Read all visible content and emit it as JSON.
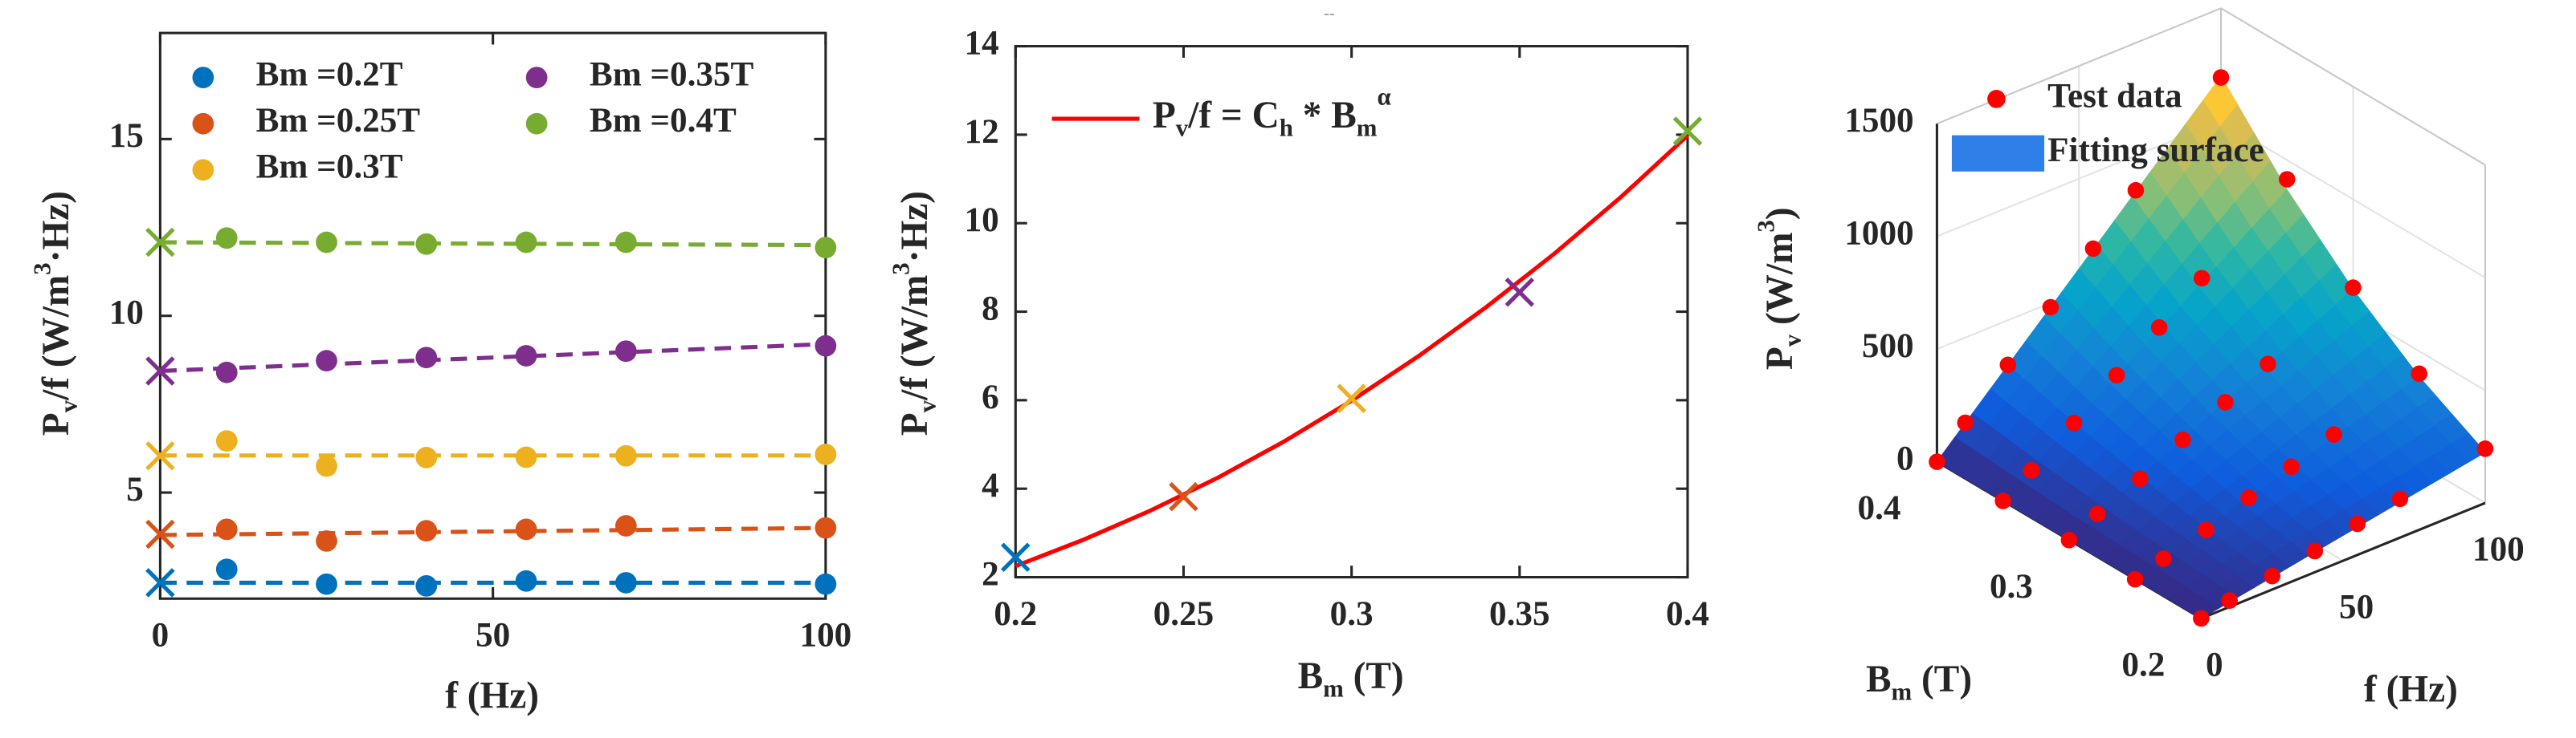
{
  "chart_data": [
    {
      "type": "scatter",
      "xlabel": "f (Hz)",
      "ylabel": [
        "P",
        "v",
        "/f (W/m",
        "3",
        "·Hz)"
      ],
      "x": [
        10,
        25,
        40,
        55,
        70,
        100
      ],
      "fit_x": [
        0,
        100
      ],
      "xlim": [
        0,
        100
      ],
      "xticks": [
        0,
        50,
        100
      ],
      "ylim": [
        2,
        18
      ],
      "yticks": [
        5,
        10,
        15
      ],
      "series": [
        {
          "name": "Bm =0.2T",
          "color": "#0072bd",
          "cross": 2.45,
          "values": [
            2.83,
            2.41,
            2.36,
            2.5,
            2.45,
            2.41
          ],
          "fit": [
            2.45,
            2.45
          ]
        },
        {
          "name": "Bm =0.25T",
          "color": "#d95319",
          "cross": 3.82,
          "values": [
            3.96,
            3.63,
            3.92,
            3.96,
            4.06,
            4.0
          ],
          "fit": [
            3.8,
            4.0
          ]
        },
        {
          "name": "Bm =0.3T",
          "color": "#edb120",
          "cross": 6.04,
          "values": [
            6.46,
            5.75,
            5.99,
            6.0,
            6.04,
            6.08
          ],
          "fit": [
            6.05,
            6.05
          ]
        },
        {
          "name": "Bm =0.35T",
          "color": "#7e2f8e",
          "cross": 8.44,
          "values": [
            8.4,
            8.73,
            8.82,
            8.87,
            9.0,
            9.15
          ],
          "fit": [
            8.44,
            9.2
          ]
        },
        {
          "name": "Bm =0.4T",
          "color": "#77ac30",
          "cross": 12.08,
          "values": [
            12.2,
            12.08,
            12.03,
            12.08,
            12.08,
            11.93
          ],
          "fit": [
            12.08,
            12.0
          ]
        }
      ]
    },
    {
      "type": "line",
      "title": "--",
      "xlabel": [
        "B",
        "m",
        " (T)"
      ],
      "ylabel": [
        "P",
        "v",
        "/f (W/m",
        "3",
        "·Hz)"
      ],
      "x": [
        0.2,
        0.22,
        0.24,
        0.26,
        0.28,
        0.3,
        0.32,
        0.34,
        0.36,
        0.38,
        0.4
      ],
      "xlim": [
        0.2,
        0.4
      ],
      "xticks": [
        0.2,
        0.25,
        0.3,
        0.35,
        0.4
      ],
      "ylim": [
        2,
        14
      ],
      "yticks": [
        2,
        4,
        6,
        8,
        10,
        12,
        14
      ],
      "series": [
        {
          "name": [
            "P",
            "v",
            "/f = C",
            "h",
            " * B",
            "m",
            "α"
          ],
          "color": "#ff0000",
          "values": [
            2.25,
            2.84,
            3.5,
            4.24,
            5.07,
            5.99,
            7.0,
            8.1,
            9.29,
            10.58,
            11.98
          ]
        }
      ],
      "points": {
        "x": [
          0.2,
          0.25,
          0.3,
          0.35,
          0.4
        ],
        "values": [
          2.45,
          3.82,
          6.04,
          8.44,
          12.08
        ],
        "colors": [
          "#0072bd",
          "#d95319",
          "#edb120",
          "#7e2f8e",
          "#77ac30"
        ]
      }
    },
    {
      "type": "surface",
      "xlabel": "f (Hz)",
      "ylabel": [
        "B",
        "m",
        " (T)"
      ],
      "zlabel": [
        "P",
        "v",
        "  (W/m",
        "3",
        ")"
      ],
      "xlim": [
        0,
        100
      ],
      "xticks": [
        0,
        50,
        100
      ],
      "ylim": [
        0.2,
        0.4
      ],
      "yticks": [
        0.2,
        0.3,
        0.4
      ],
      "zlim": [
        0,
        1500
      ],
      "zticks": [
        0,
        500,
        1000,
        1500
      ],
      "surface": {
        "name": "Fitting surface",
        "color": "#2e7fe8",
        "f": [
          0,
          25,
          50,
          75,
          100
        ],
        "Bm": [
          0.2,
          0.25,
          0.3,
          0.35,
          0.4
        ],
        "values": [
          [
            0,
            56,
            113,
            169,
            225
          ],
          [
            0,
            97,
            193,
            290,
            386
          ],
          [
            0,
            150,
            300,
            449,
            599
          ],
          [
            0,
            217,
            434,
            651,
            868
          ],
          [
            0,
            300,
            599,
            899,
            1198
          ]
        ]
      },
      "test_data": {
        "name": "Test data",
        "color": "#ff0000",
        "f": [
          0,
          10,
          25,
          40,
          55,
          70,
          100
        ],
        "Bm": [
          0.2,
          0.25,
          0.3,
          0.35,
          0.4
        ],
        "values": [
          [
            0,
            28,
            60,
            94,
            138,
            172,
            241
          ],
          [
            0,
            40,
            91,
            157,
            218,
            284,
            400
          ],
          [
            0,
            65,
            144,
            240,
            330,
            423,
            608
          ],
          [
            0,
            84,
            218,
            353,
            488,
            630,
            915
          ],
          [
            0,
            122,
            302,
            481,
            664,
            846,
            1193
          ]
        ]
      }
    }
  ]
}
